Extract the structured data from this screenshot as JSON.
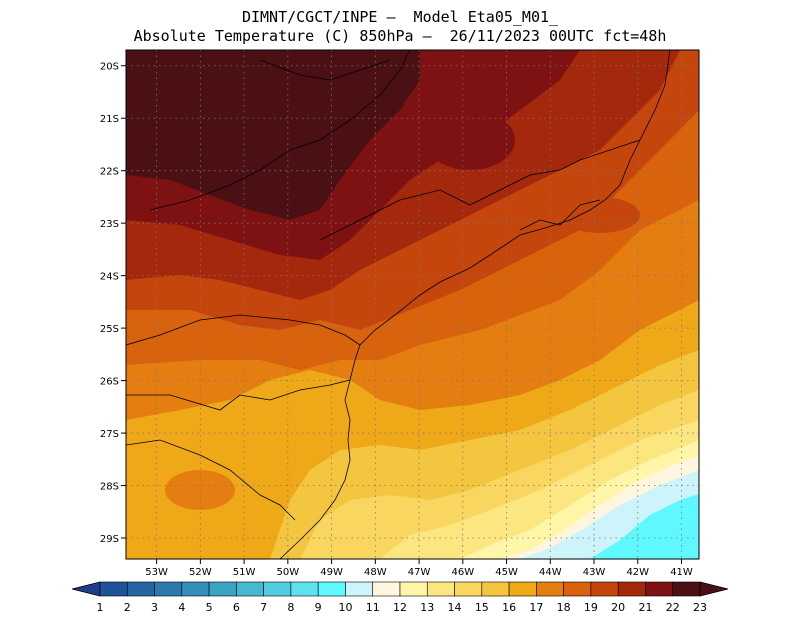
{
  "header": {
    "line1": "DIMNT/CGCT/INPE –  Model Eta05_M01_",
    "line2": "Absolute Temperature (C) 850hPa –  26/11/2023 00UTC fct=48h"
  },
  "axes": {
    "lat_labels": [
      "20S",
      "21S",
      "22S",
      "23S",
      "24S",
      "25S",
      "26S",
      "27S",
      "28S",
      "29S"
    ],
    "lon_labels": [
      "53W",
      "52W",
      "51W",
      "50W",
      "49W",
      "48W",
      "47W",
      "46W",
      "45W",
      "44W",
      "43W",
      "42W",
      "41W"
    ],
    "lat_range": [
      -29.4,
      -19.7
    ],
    "lon_range": [
      -53.7,
      -40.6
    ],
    "grid": true
  },
  "colorbar": {
    "labels": [
      "1",
      "2",
      "3",
      "4",
      "5",
      "6",
      "7",
      "8",
      "9",
      "10",
      "11",
      "12",
      "13",
      "14",
      "15",
      "16",
      "17",
      "18",
      "19",
      "20",
      "21",
      "22",
      "23"
    ],
    "colors": [
      "#1e3c8c",
      "#1f5296",
      "#2566a2",
      "#2c7aad",
      "#348eb8",
      "#3ca3c4",
      "#46b8d2",
      "#52cde0",
      "#5ee2ef",
      "#5ff8ff",
      "#cdf4fb",
      "#fff6e0",
      "#fff6a8",
      "#fbe680",
      "#f8d660",
      "#f4c640",
      "#efa818",
      "#e57e10",
      "#d9620c",
      "#c5460c",
      "#a3280c",
      "#7e1212",
      "#4b1014"
    ]
  },
  "field": {
    "variable": "temperature_850hPa_C",
    "regions_levels": [
      23,
      22,
      21,
      20,
      19,
      18,
      17,
      16,
      15,
      14,
      13,
      12,
      11,
      10
    ]
  }
}
